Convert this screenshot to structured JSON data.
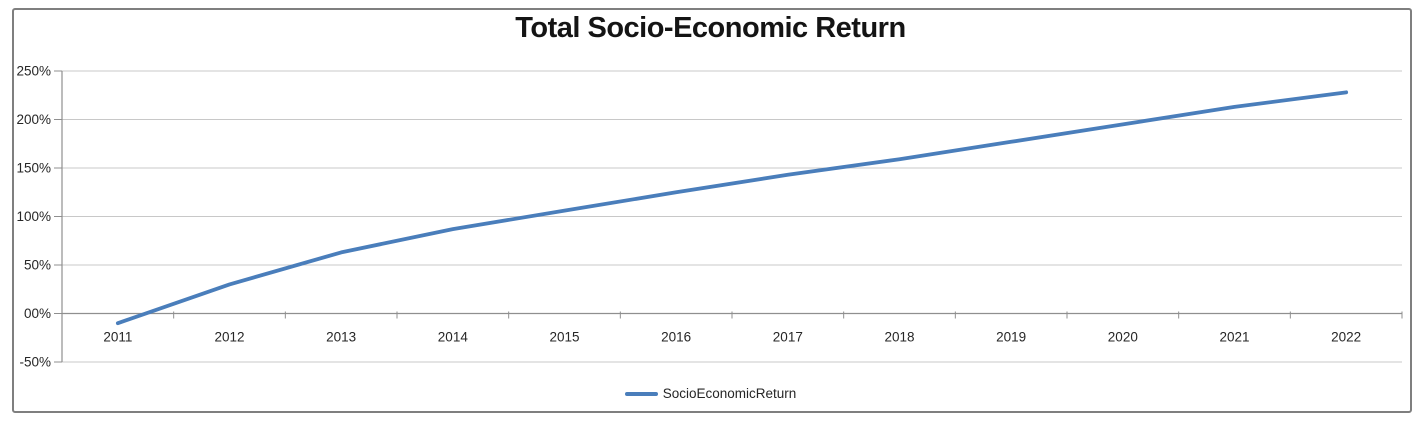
{
  "chart": {
    "title": "Total Socio-Economic Return",
    "colors": {
      "series": "#4a7ebb",
      "gridline": "#c8c8c8",
      "axis": "#8f8f8f",
      "text": "#262626",
      "frame_border": "#7f7f7f",
      "title_text": "#141414"
    }
  },
  "legend": {
    "label": "SocioEconomicReturn"
  },
  "chart_data": {
    "type": "line",
    "title": "Total Socio-Economic Return",
    "x": [
      2011,
      2012,
      2013,
      2014,
      2015,
      2016,
      2017,
      2018,
      2019,
      2020,
      2021,
      2022
    ],
    "x_labels": [
      "2011",
      "2012",
      "2013",
      "2014",
      "2015",
      "2016",
      "2017",
      "2018",
      "2019",
      "2020",
      "2021",
      "2022"
    ],
    "series": [
      {
        "name": "SocioEconomicReturn",
        "values": [
          -10,
          30,
          63,
          87,
          106,
          125,
          143,
          159,
          177,
          195,
          213,
          228
        ]
      }
    ],
    "value_unit": "percent",
    "ylim": [
      -50,
      250
    ],
    "ytick_step": 50,
    "ytick_labels": [
      "250%",
      "200%",
      "150%",
      "100%",
      "50%",
      "00%",
      "-50%"
    ],
    "grid": "horizontal-only",
    "markers": false,
    "legend_position": "bottom-center",
    "xaxis_at_value": 0
  }
}
